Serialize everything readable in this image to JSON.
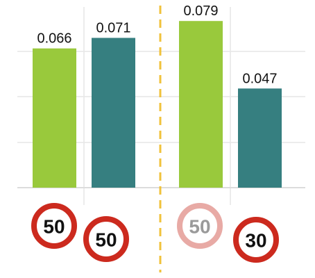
{
  "colors": {
    "green": "#99c93c",
    "teal": "#367f80",
    "divider": "#f0c23b",
    "grid": "#e6e6e6",
    "sign_ring": "#cc2a1e",
    "sign_ring_faded": "#e8aaa5",
    "sign_text": "#111111",
    "sign_text_faded": "#9a9a9a"
  },
  "chart_data": {
    "type": "bar",
    "title": "",
    "xlabel": "",
    "ylabel": "",
    "grid": true,
    "ylim": [
      0,
      0.085
    ],
    "groups": [
      {
        "bars": [
          {
            "value": 0.066,
            "label": "0.066",
            "color": "green",
            "sign": "50",
            "sign_faded": false
          },
          {
            "value": 0.071,
            "label": "0.071",
            "color": "teal",
            "sign": "50",
            "sign_faded": false
          }
        ]
      },
      {
        "bars": [
          {
            "value": 0.079,
            "label": "0.079",
            "color": "green",
            "sign": "50",
            "sign_faded": true
          },
          {
            "value": 0.047,
            "label": "0.047",
            "color": "teal",
            "sign": "30",
            "sign_faded": false
          }
        ]
      }
    ]
  }
}
